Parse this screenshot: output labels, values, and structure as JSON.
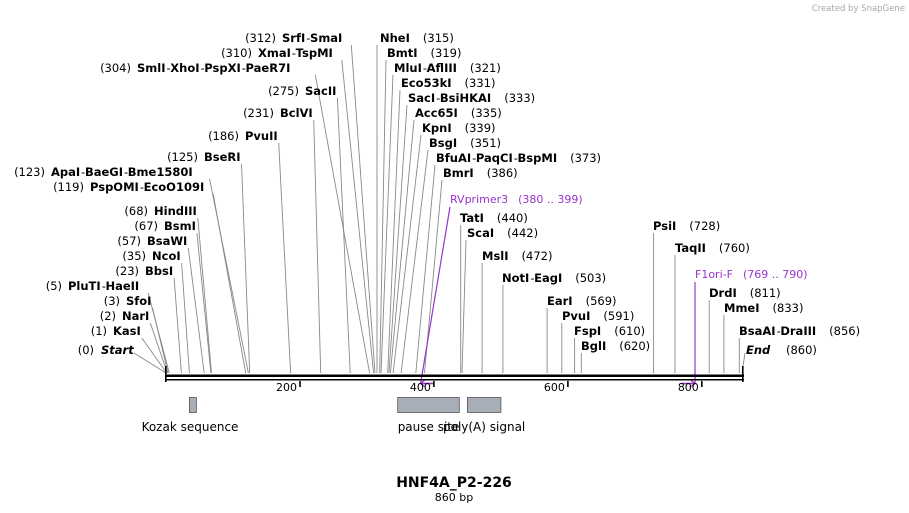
{
  "credit": "Created by SnapGene",
  "title": "HNF4A_P2-226",
  "length": "860 bp",
  "colors": {
    "primer": "#9933cc",
    "feature": "#a8aeb8",
    "line": "#000000"
  },
  "ticks": [
    "200",
    "400",
    "600",
    "800"
  ],
  "tick_values": [
    200,
    400,
    600,
    800
  ],
  "ends": [
    {
      "pos": 0,
      "label": "Start",
      "num": "(0)"
    },
    {
      "pos": 860,
      "label": "End",
      "num": "(860)"
    }
  ],
  "sites": [
    {
      "pos": 1,
      "num": "(1)",
      "names": [
        "KasI"
      ]
    },
    {
      "pos": 2,
      "num": "(2)",
      "names": [
        "NarI"
      ]
    },
    {
      "pos": 3,
      "num": "(3)",
      "names": [
        "SfoI"
      ]
    },
    {
      "pos": 5,
      "num": "(5)",
      "names": [
        "PluTI",
        "HaeII"
      ]
    },
    {
      "pos": 23,
      "num": "(23)",
      "names": [
        "BbsI"
      ]
    },
    {
      "pos": 35,
      "num": "(35)",
      "names": [
        "NcoI"
      ]
    },
    {
      "pos": 57,
      "num": "(57)",
      "names": [
        "BsaWI"
      ]
    },
    {
      "pos": 67,
      "num": "(67)",
      "names": [
        "BsmI"
      ]
    },
    {
      "pos": 68,
      "num": "(68)",
      "names": [
        "HindIII"
      ]
    },
    {
      "pos": 119,
      "num": "(119)",
      "names": [
        "PspOMI",
        "EcoO109I"
      ]
    },
    {
      "pos": 123,
      "num": "(123)",
      "names": [
        "ApaI",
        "BaeGI",
        "Bme1580I"
      ]
    },
    {
      "pos": 125,
      "num": "(125)",
      "names": [
        "BseRI"
      ]
    },
    {
      "pos": 186,
      "num": "(186)",
      "names": [
        "PvuII"
      ]
    },
    {
      "pos": 231,
      "num": "(231)",
      "names": [
        "BclVI"
      ]
    },
    {
      "pos": 275,
      "num": "(275)",
      "names": [
        "SacII"
      ]
    },
    {
      "pos": 304,
      "num": "(304)",
      "names": [
        "SmlI",
        "XhoI",
        "PspXI",
        "PaeR7I"
      ]
    },
    {
      "pos": 310,
      "num": "(310)",
      "names": [
        "XmaI",
        "TspMI"
      ]
    },
    {
      "pos": 312,
      "num": "(312)",
      "names": [
        "SrfI",
        "SmaI"
      ]
    },
    {
      "pos": 315,
      "num": "(315)",
      "names": [
        "NheI"
      ]
    },
    {
      "pos": 319,
      "num": "(319)",
      "names": [
        "BmtI"
      ]
    },
    {
      "pos": 321,
      "num": "(321)",
      "names": [
        "MluI",
        "AflIII"
      ]
    },
    {
      "pos": 331,
      "num": "(331)",
      "names": [
        "Eco53kI"
      ]
    },
    {
      "pos": 333,
      "num": "(333)",
      "names": [
        "SacI",
        "BsiHKAI"
      ]
    },
    {
      "pos": 335,
      "num": "(335)",
      "names": [
        "Acc65I"
      ]
    },
    {
      "pos": 339,
      "num": "(339)",
      "names": [
        "KpnI"
      ]
    },
    {
      "pos": 351,
      "num": "(351)",
      "names": [
        "BsgI"
      ]
    },
    {
      "pos": 373,
      "num": "(373)",
      "names": [
        "BfuAI",
        "PaqCI",
        "BspMI"
      ]
    },
    {
      "pos": 386,
      "num": "(386)",
      "names": [
        "BmrI"
      ]
    },
    {
      "pos": 440,
      "num": "(440)",
      "names": [
        "TatI"
      ]
    },
    {
      "pos": 442,
      "num": "(442)",
      "names": [
        "ScaI"
      ]
    },
    {
      "pos": 472,
      "num": "(472)",
      "names": [
        "MslI"
      ]
    },
    {
      "pos": 503,
      "num": "(503)",
      "names": [
        "NotI",
        "EagI"
      ]
    },
    {
      "pos": 569,
      "num": "(569)",
      "names": [
        "EarI"
      ]
    },
    {
      "pos": 591,
      "num": "(591)",
      "names": [
        "PvuI"
      ]
    },
    {
      "pos": 610,
      "num": "(610)",
      "names": [
        "FspI"
      ]
    },
    {
      "pos": 620,
      "num": "(620)",
      "names": [
        "BglI"
      ]
    },
    {
      "pos": 728,
      "num": "(728)",
      "names": [
        "PsiI"
      ]
    },
    {
      "pos": 760,
      "num": "(760)",
      "names": [
        "TaqII"
      ]
    },
    {
      "pos": 811,
      "num": "(811)",
      "names": [
        "DrdI"
      ]
    },
    {
      "pos": 833,
      "num": "(833)",
      "names": [
        "MmeI"
      ]
    },
    {
      "pos": 856,
      "num": "(856)",
      "names": [
        "BsaAI",
        "DraIII"
      ]
    }
  ],
  "primers": [
    {
      "name": "RVprimer3",
      "range": "(380 .. 399)",
      "start": 380,
      "end": 399,
      "direction": "reverse"
    },
    {
      "name": "F1ori-F",
      "range": "(769 .. 790)",
      "start": 769,
      "end": 790,
      "direction": "forward"
    }
  ],
  "features": [
    {
      "name": "Kozak sequence",
      "start": 35,
      "end": 45
    },
    {
      "name": "pause site",
      "start": 346,
      "end": 438
    },
    {
      "name": "poly(A) signal",
      "start": 450,
      "end": 500
    }
  ]
}
